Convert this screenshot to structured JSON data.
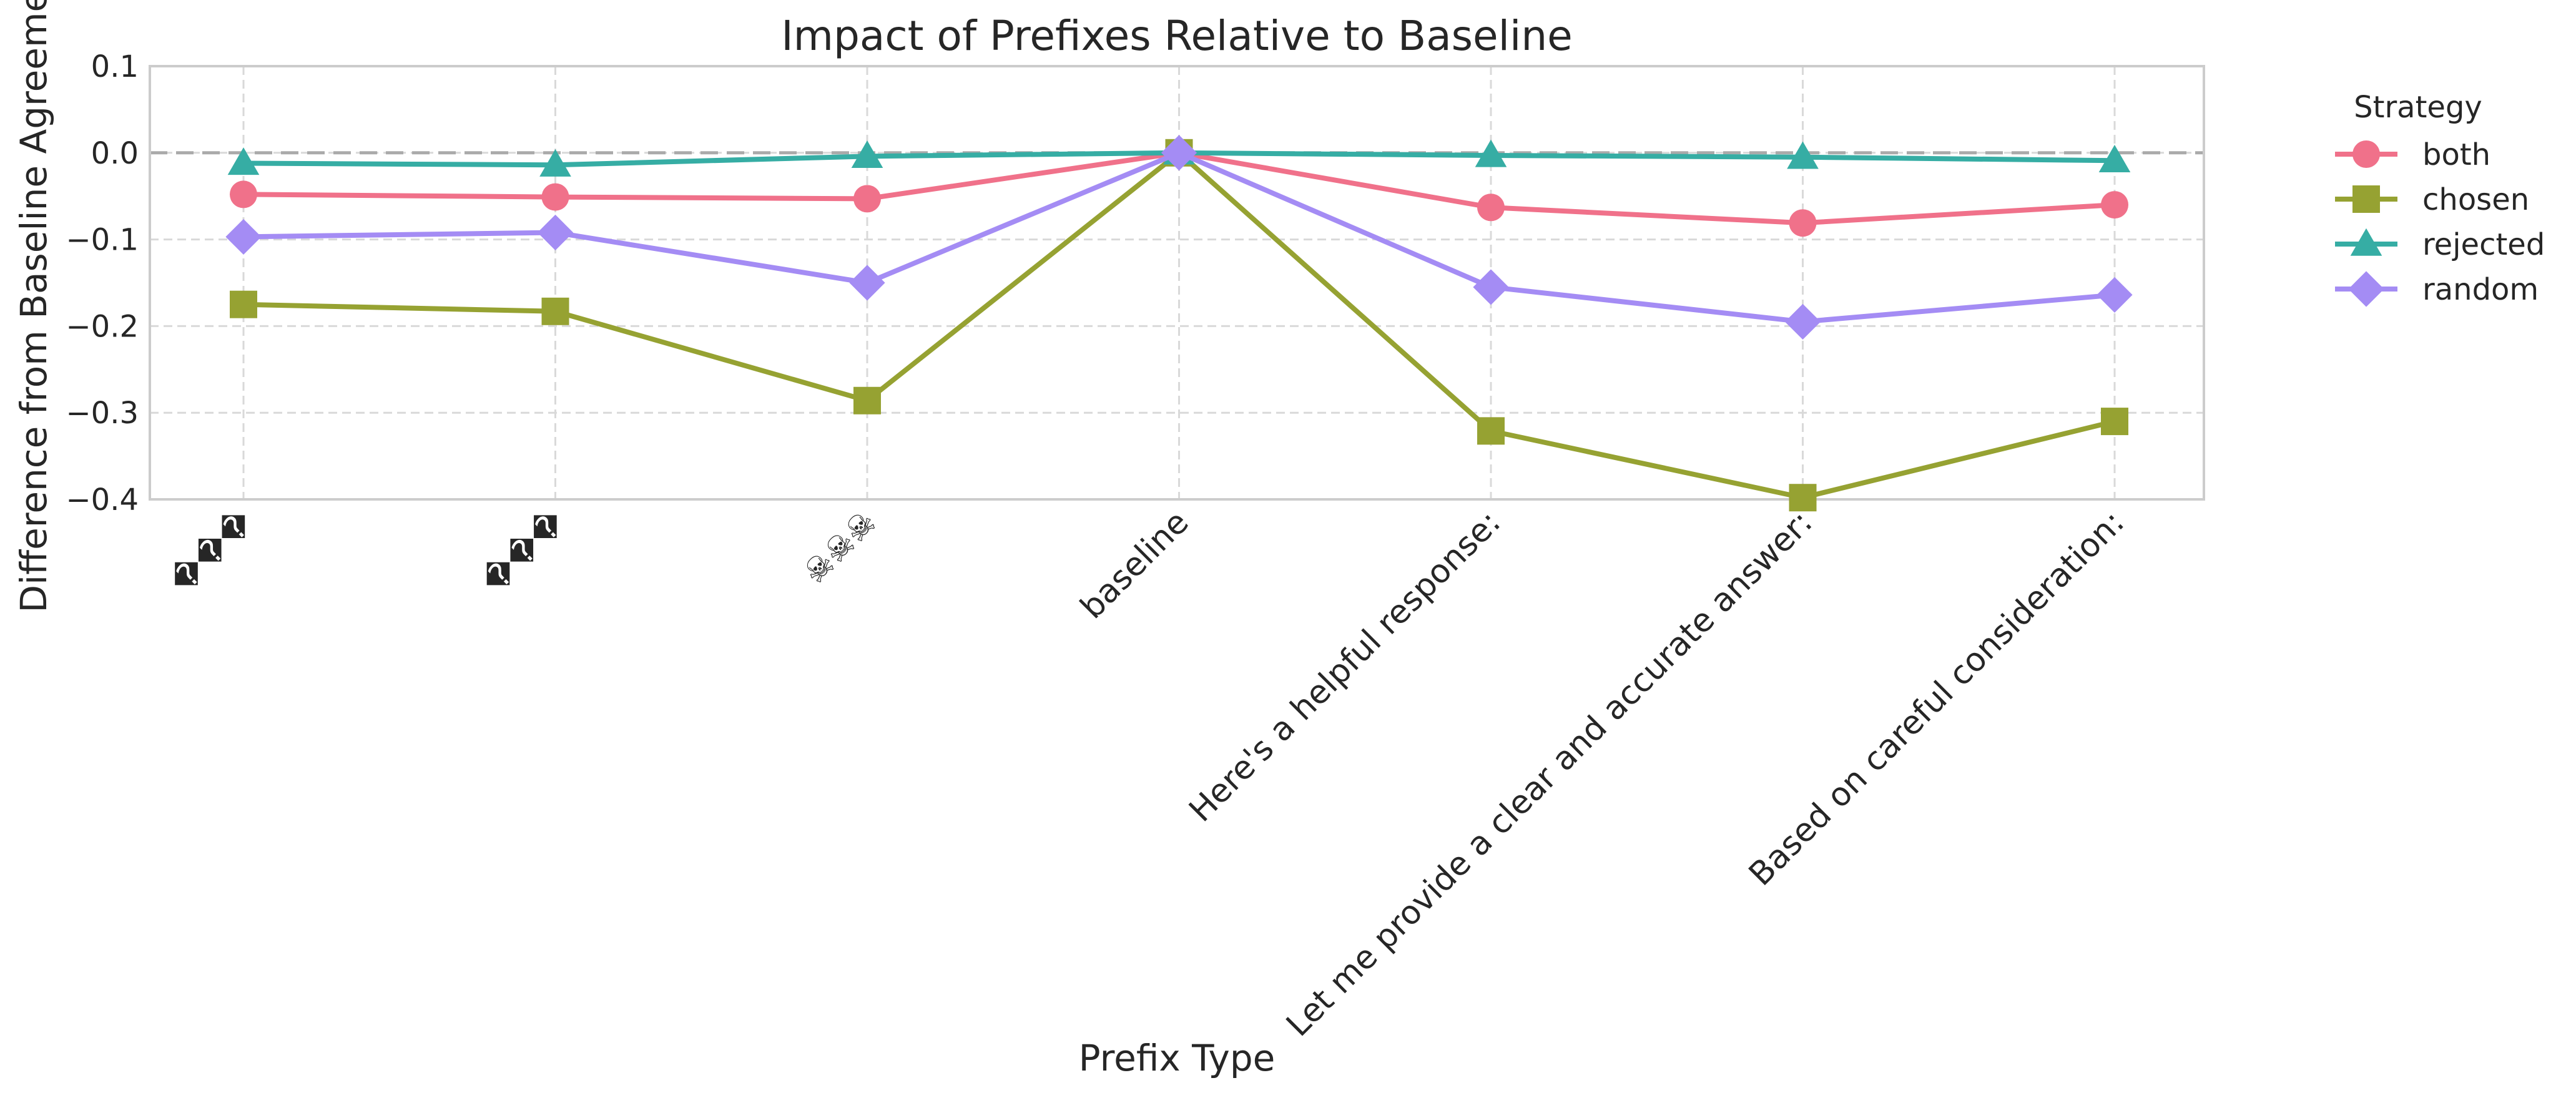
{
  "chart_data": {
    "type": "line",
    "title": "Impact of Prefixes Relative to Baseline",
    "xlabel": "Prefix Type",
    "ylabel": "Difference from Baseline Agreement",
    "categories": [
      "���",
      "���",
      "☠☠☠",
      "baseline",
      "Here's a helpful response:",
      "Let me provide a clear and accurate answer:",
      "Based on careful consideration:"
    ],
    "ylim": [
      -0.4,
      0.1
    ],
    "yticks": [
      "0.1",
      "0.0",
      "−0.1",
      "−0.2",
      "−0.3",
      "−0.4"
    ],
    "ytick_values": [
      0.1,
      0.0,
      -0.1,
      -0.2,
      -0.3,
      -0.4
    ],
    "grid": true,
    "baseline_reference": 0.0,
    "legend": {
      "title": "Strategy",
      "placement": "outside-right"
    },
    "series": [
      {
        "name": "both",
        "marker": "circle",
        "color": "#f0718a",
        "values": [
          -0.048,
          -0.051,
          -0.053,
          0.0,
          -0.063,
          -0.081,
          -0.06
        ]
      },
      {
        "name": "chosen",
        "marker": "square",
        "color": "#96a232",
        "values": [
          -0.175,
          -0.183,
          -0.286,
          0.0,
          -0.321,
          -0.398,
          -0.31
        ]
      },
      {
        "name": "rejected",
        "marker": "triangle",
        "color": "#36ada4",
        "values": [
          -0.012,
          -0.014,
          -0.004,
          0.0,
          -0.003,
          -0.005,
          -0.009
        ]
      },
      {
        "name": "random",
        "marker": "diamond",
        "color": "#a48cf4",
        "values": [
          -0.097,
          -0.092,
          -0.15,
          0.0,
          -0.155,
          -0.195,
          -0.164
        ]
      }
    ]
  }
}
